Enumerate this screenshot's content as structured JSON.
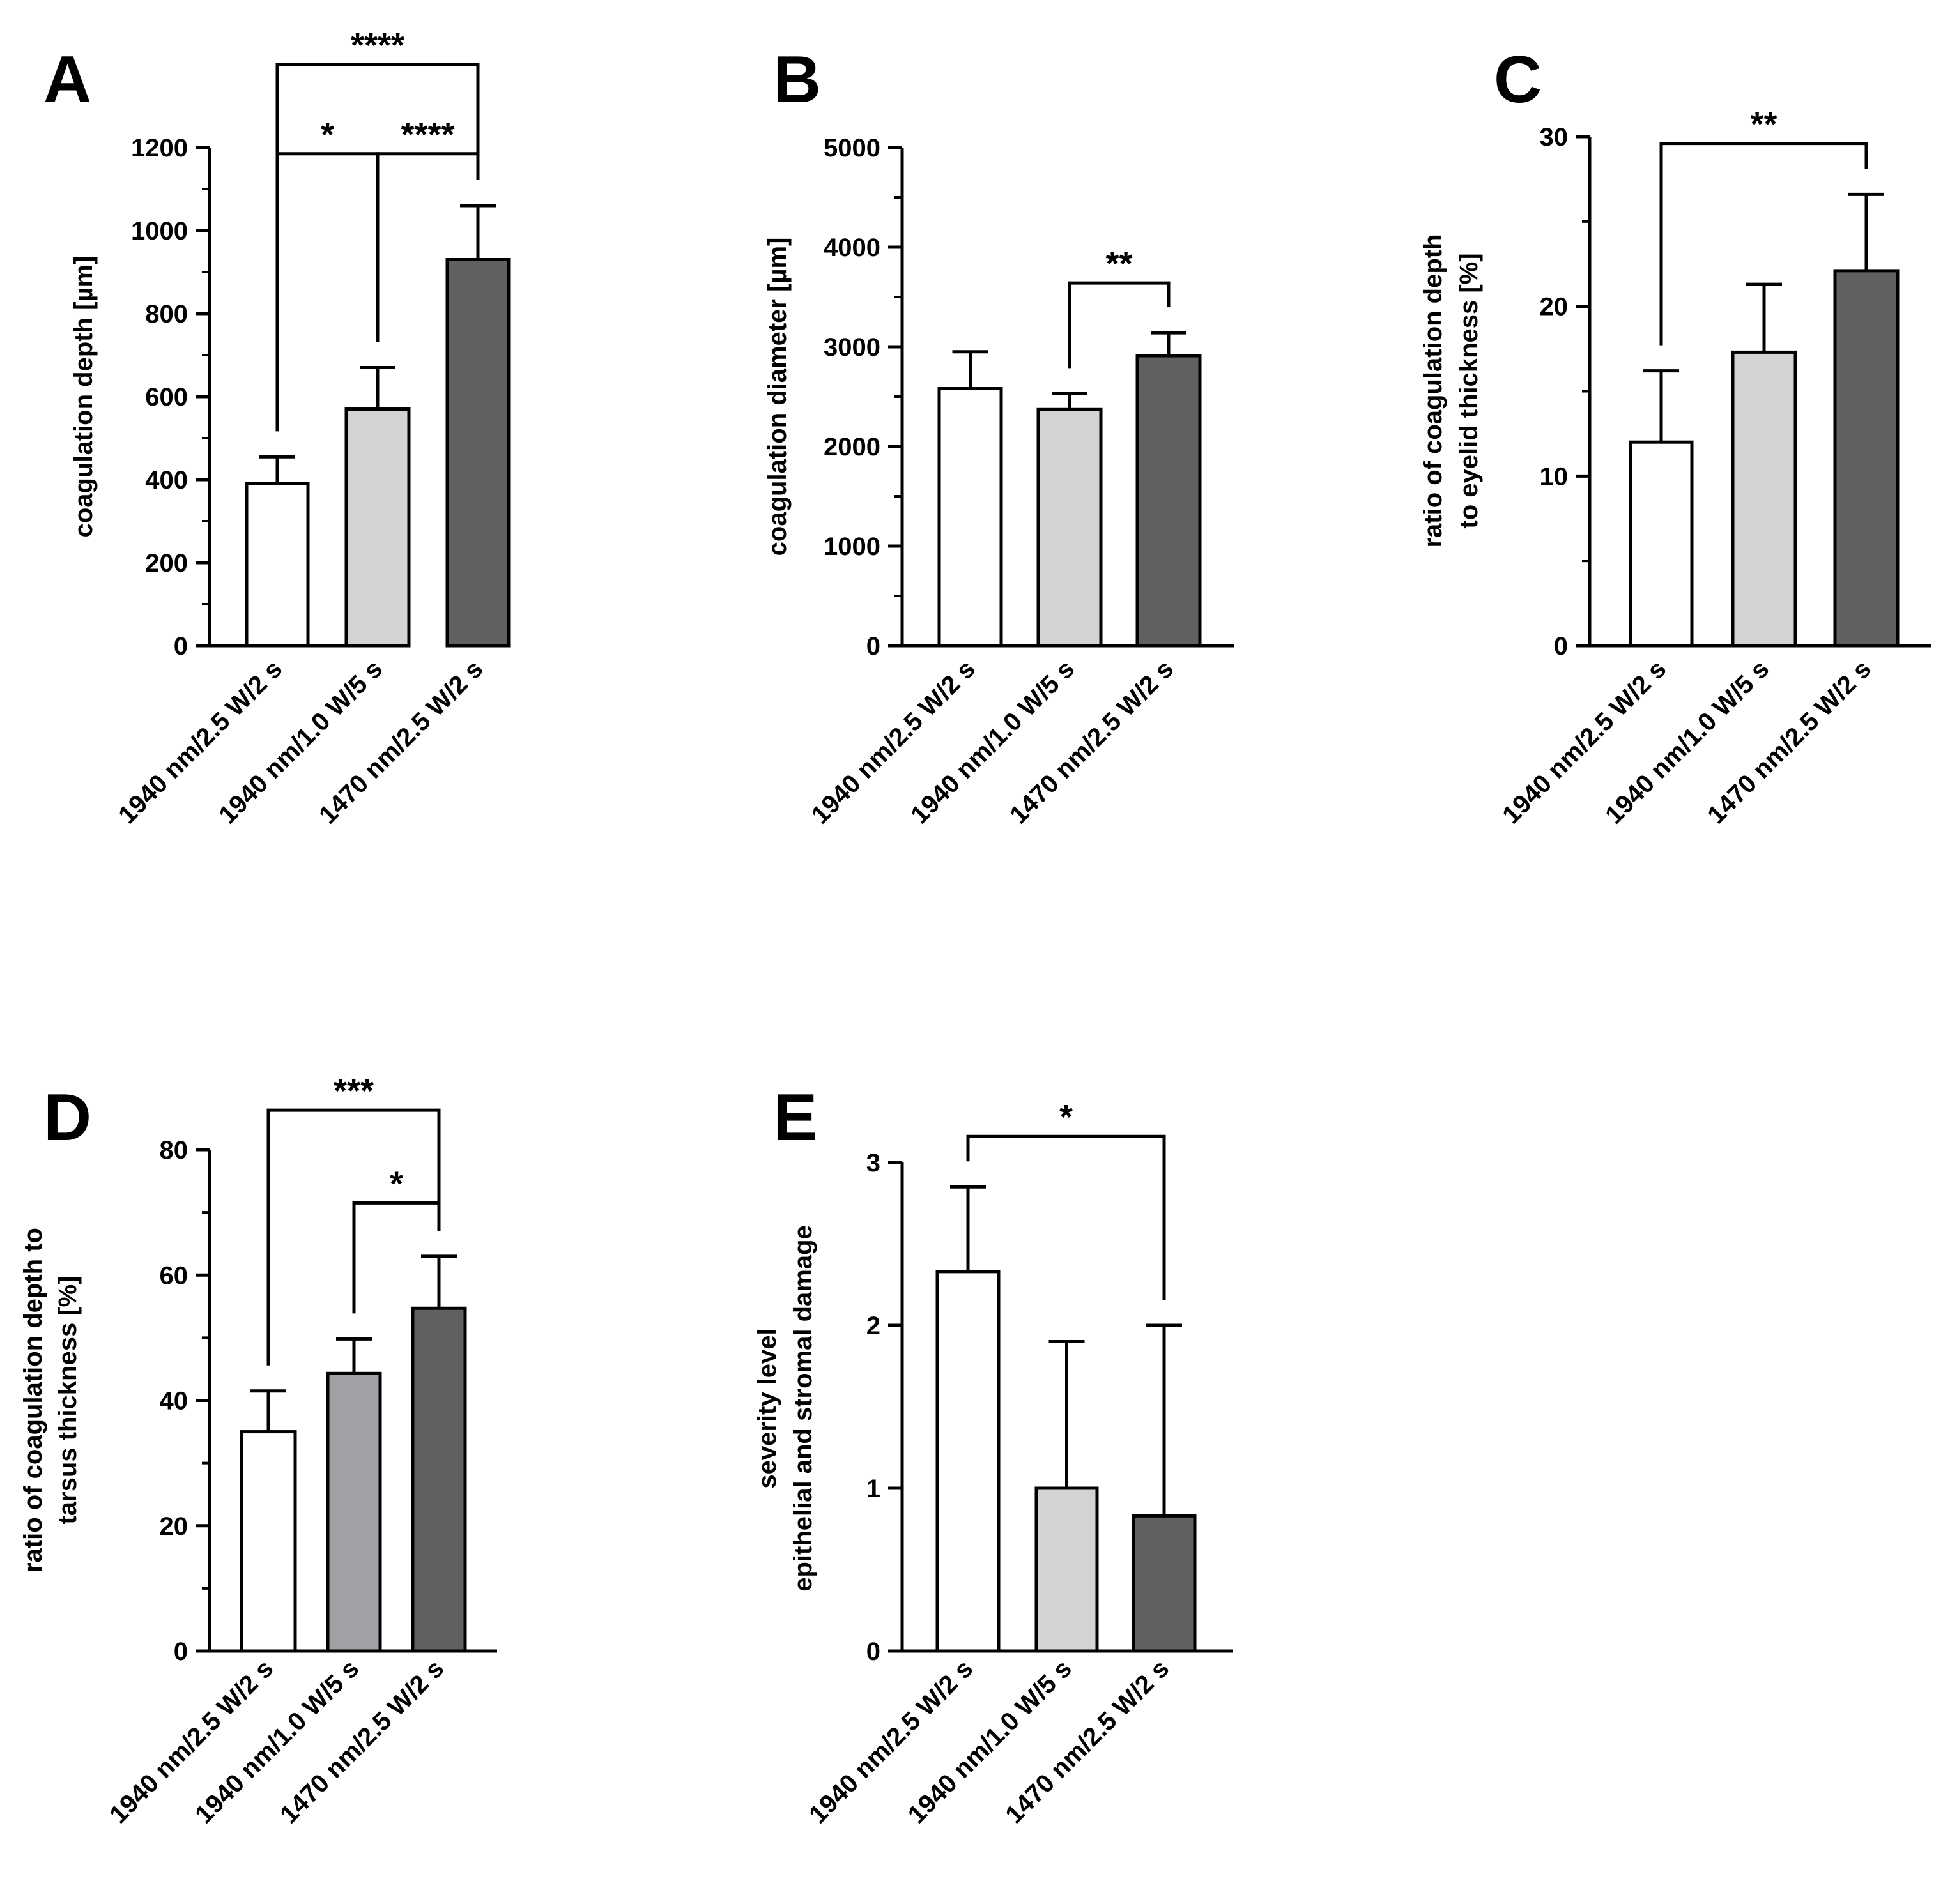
{
  "chart_data": [
    {
      "panel": "A",
      "type": "bar",
      "categories": [
        "1940 nm/2.5 W/2 s",
        "1940 nm/1.0 W/5 s",
        "1470 nm/2.5 W/2 s"
      ],
      "values": [
        390,
        570,
        930
      ],
      "errors": [
        65,
        100,
        130
      ],
      "colors": [
        "#ffffff",
        "#d3d3d3",
        "#606060"
      ],
      "ylabel": [
        "coagulation depth [µm]"
      ],
      "ylim": [
        0,
        1200
      ],
      "major_ticks": [
        0,
        200,
        400,
        600,
        800,
        1000,
        1200
      ],
      "minor_ticks": [
        100,
        300,
        500,
        700,
        900,
        1100
      ],
      "tick_labels": [
        "0",
        "200",
        "400",
        "600",
        "800",
        "1000",
        "1200"
      ],
      "significance": [
        {
          "from": 0,
          "to": 1,
          "label": "*",
          "y": 1185
        },
        {
          "from": 1,
          "to": 2,
          "label": "****",
          "y": 1185
        },
        {
          "from": 0,
          "to": 2,
          "label": "****",
          "y": 1400
        }
      ]
    },
    {
      "panel": "B",
      "type": "bar",
      "categories": [
        "1940 nm/2.5 W/2 s",
        "1940 nm/1.0 W/5 s",
        "1470 nm/2.5 W/2 s"
      ],
      "values": [
        2580,
        2370,
        2910
      ],
      "errors": [
        370,
        160,
        230
      ],
      "colors": [
        "#ffffff",
        "#d3d3d3",
        "#606060"
      ],
      "ylabel": [
        "coagulation diameter [µm]"
      ],
      "ylim": [
        0,
        5000
      ],
      "major_ticks": [
        0,
        1000,
        2000,
        3000,
        4000,
        5000
      ],
      "minor_ticks": [
        500,
        1500,
        2500,
        3500,
        4500
      ],
      "tick_labels": [
        "0",
        "1000",
        "2000",
        "3000",
        "4000",
        "5000"
      ],
      "significance": [
        {
          "from": 1,
          "to": 2,
          "label": "**",
          "y": 3640
        }
      ]
    },
    {
      "panel": "C",
      "type": "bar",
      "categories": [
        "1940 nm/2.5 W/2 s",
        "1940 nm/1.0 W/5 s",
        "1470 nm/2.5 W/2 s"
      ],
      "values": [
        12,
        17.3,
        22.1
      ],
      "errors": [
        4.2,
        4.0,
        4.5
      ],
      "colors": [
        "#ffffff",
        "#d3d3d3",
        "#606060"
      ],
      "ylabel": [
        "ratio of coagulation depth",
        "to eyelid thickness [%]"
      ],
      "ylim": [
        0,
        30
      ],
      "major_ticks": [
        0,
        10,
        20,
        30
      ],
      "minor_ticks": [
        5,
        15,
        25
      ],
      "tick_labels": [
        "0",
        "10",
        "20",
        "30"
      ],
      "significance": [
        {
          "from": 0,
          "to": 2,
          "label": "**",
          "y": 29.6
        }
      ]
    },
    {
      "panel": "D",
      "type": "bar",
      "categories": [
        "1940 nm/2.5 W/2 s",
        "1940 nm/1.0 W/5 s",
        "1470 nm/2.5 W/2 s"
      ],
      "values": [
        35,
        44.3,
        54.7
      ],
      "errors": [
        6.5,
        5.5,
        8.3
      ],
      "colors": [
        "#ffffff",
        "#a1a1a5",
        "#606060"
      ],
      "ylabel": [
        "ratio of coagulation depth to",
        "tarsus thickness [%]"
      ],
      "ylim": [
        0,
        80
      ],
      "major_ticks": [
        0,
        20,
        40,
        60,
        80
      ],
      "minor_ticks": [
        10,
        30,
        50,
        70
      ],
      "tick_labels": [
        "0",
        "20",
        "40",
        "60",
        "80"
      ],
      "significance": [
        {
          "from": 1,
          "to": 2,
          "label": "*",
          "y": 71.5
        },
        {
          "from": 0,
          "to": 2,
          "label": "***",
          "y": 86.3
        }
      ]
    },
    {
      "panel": "E",
      "type": "bar",
      "categories": [
        "1940 nm/2.5 W/2 s",
        "1940 nm/1.0 W/5 s",
        "1470 nm/2.5 W/2 s"
      ],
      "values": [
        2.33,
        1.0,
        0.83
      ],
      "errors": [
        0.52,
        0.9,
        1.17
      ],
      "colors": [
        "#ffffff",
        "#d3d3d3",
        "#606060"
      ],
      "ylabel": [
        "severity level",
        "epithelial and stromal damage"
      ],
      "ylim": [
        0,
        3
      ],
      "major_ticks": [
        0,
        1,
        2,
        3
      ],
      "minor_ticks": [],
      "tick_labels": [
        "0",
        "1",
        "2",
        "3"
      ],
      "significance": [
        {
          "from": 0,
          "to": 2,
          "label": "*",
          "y": 3.16
        }
      ]
    }
  ]
}
